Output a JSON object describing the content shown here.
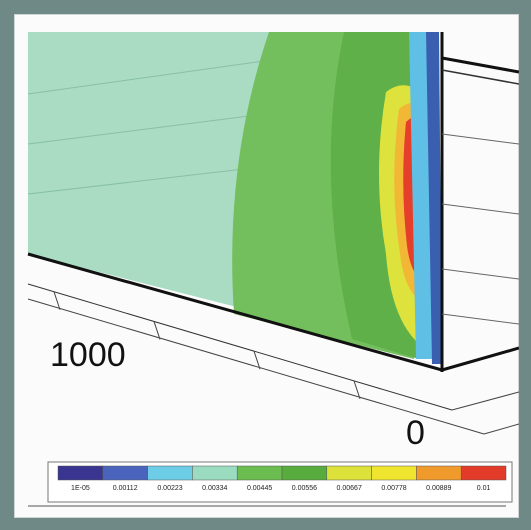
{
  "chart_data": {
    "type": "heatmap",
    "title": "",
    "xlabel": "",
    "ylabel": "",
    "axis_tick_labels": [
      "1000",
      "0"
    ],
    "colorbar": {
      "tick_labels": [
        "1E-05",
        "0.00112",
        "0.00223",
        "0.00334",
        "0.00445",
        "0.00556",
        "0.00667",
        "0.00778",
        "0.00889",
        "0.01"
      ],
      "range": [
        1e-05,
        0.01
      ],
      "colors": [
        "#3a3590",
        "#4a64be",
        "#6ecde6",
        "#9bdcc1",
        "#6bbd50",
        "#58ab3d",
        "#dde23a",
        "#f0e52e",
        "#f19a2c",
        "#e23b2a"
      ]
    },
    "surface_colors": {
      "background_level": "#a9dcc2",
      "band_1": "#74bf5d",
      "band_2": "#5fb048",
      "band_3": "#dde33c",
      "band_4": "#f3b736",
      "peak": "#e53f2b",
      "edge_light": "#5fbfe5",
      "edge_dark": "#3b5fb0"
    }
  }
}
